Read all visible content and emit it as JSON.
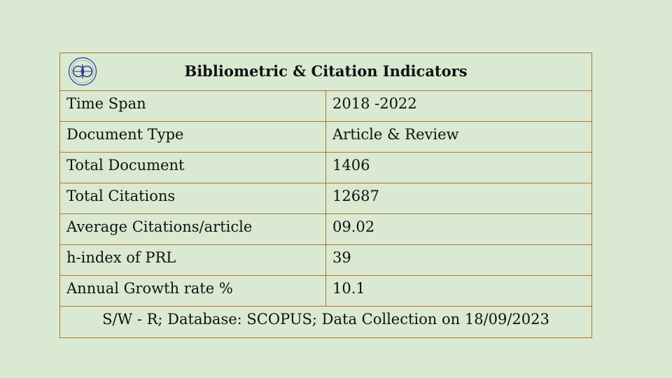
{
  "table": {
    "title": "Bibliometric & Citation Indicators",
    "logo_icon": "prl-emblem-icon",
    "rows": [
      {
        "label": "Time Span",
        "value": "2018 -2022"
      },
      {
        "label": "Document Type",
        "value": "Article & Review"
      },
      {
        "label": "Total Document",
        "value": "1406"
      },
      {
        "label": "Total Citations",
        "value": "12687"
      },
      {
        "label": "Average Citations/article",
        "value": "09.02"
      },
      {
        "label": "h-index of PRL",
        "value": "39"
      },
      {
        "label": "Annual Growth rate %",
        "value": "10.1"
      }
    ],
    "footer": "S/W - R; Database: SCOPUS; Data Collection on 18/09/2023"
  },
  "colors": {
    "background": "#d9e9d2",
    "border": "#b8722a",
    "logo": "#2c3f8f"
  }
}
